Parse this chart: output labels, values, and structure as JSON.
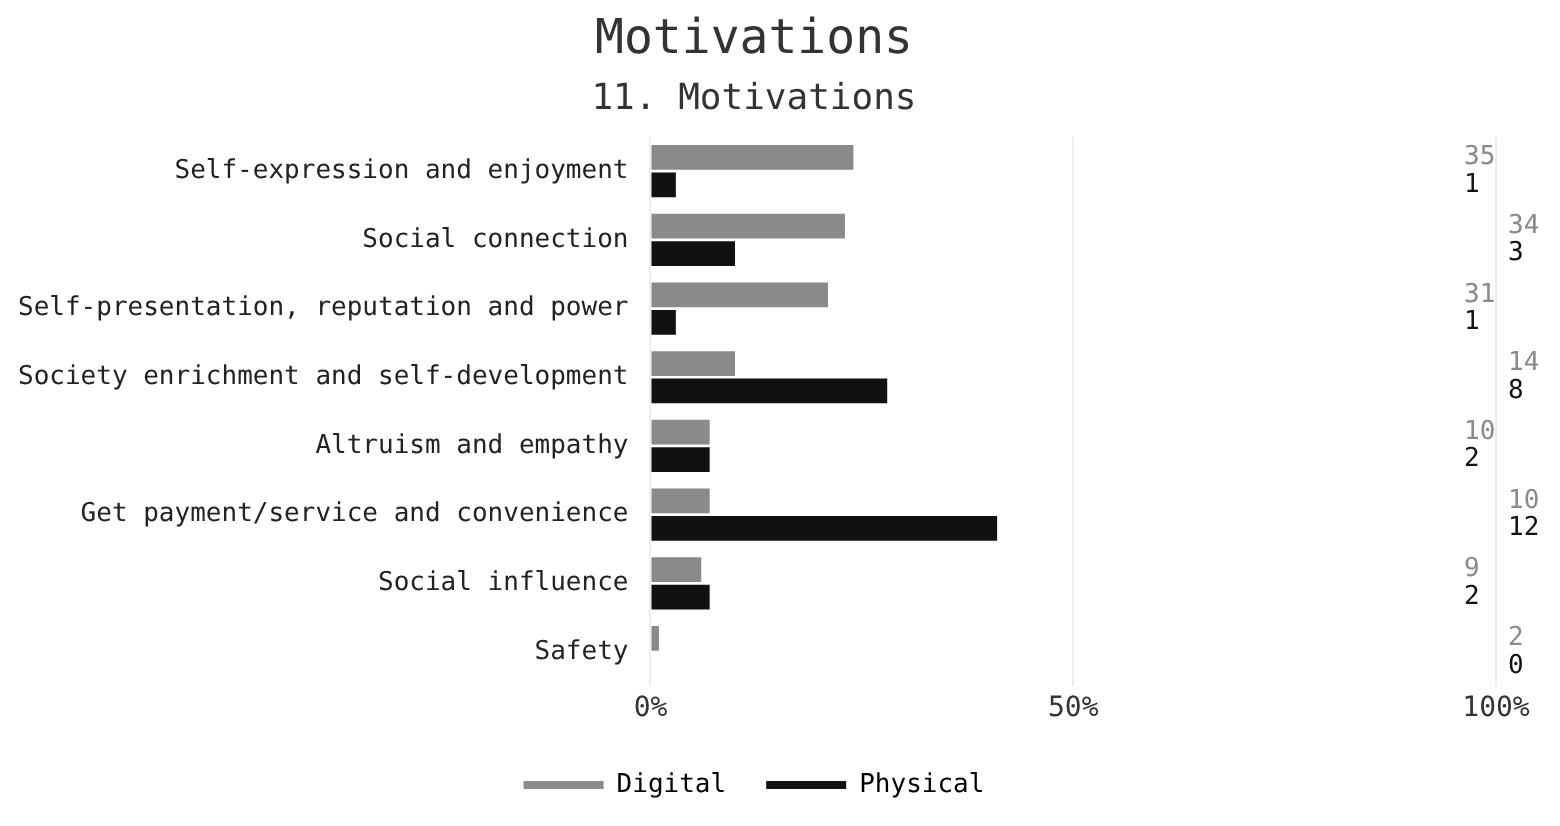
{
  "chart_data": {
    "type": "bar",
    "orientation": "horizontal",
    "title": "Motivations",
    "subtitle": "11. Motivations",
    "categories": [
      "Self-expression and enjoyment",
      "Social connection",
      "Self-presentation, reputation and power",
      "Society enrichment and self-development",
      "Altruism and empathy",
      "Get payment/service and convenience",
      "Social influence",
      "Safety"
    ],
    "series": [
      {
        "name": "Digital",
        "color": "#8a8a8a",
        "values": [
          24,
          23,
          21,
          10,
          7,
          7,
          6,
          1
        ]
      },
      {
        "name": "Physical",
        "color": "#111111",
        "values": [
          3,
          10,
          3,
          28,
          7,
          41,
          7,
          0
        ]
      }
    ],
    "annotations": [
      "35",
      "1",
      "34",
      "3",
      "31",
      "1",
      "14",
      "8",
      "10",
      "2",
      "10",
      "12",
      "9",
      "2",
      "2",
      "0"
    ],
    "xlim": [
      0,
      100
    ],
    "xticks": [
      {
        "value": 0,
        "label": "0%"
      },
      {
        "value": 50,
        "label": "50%"
      },
      {
        "value": 100,
        "label": "100%"
      }
    ],
    "grid": "x",
    "legend": "bottom"
  }
}
